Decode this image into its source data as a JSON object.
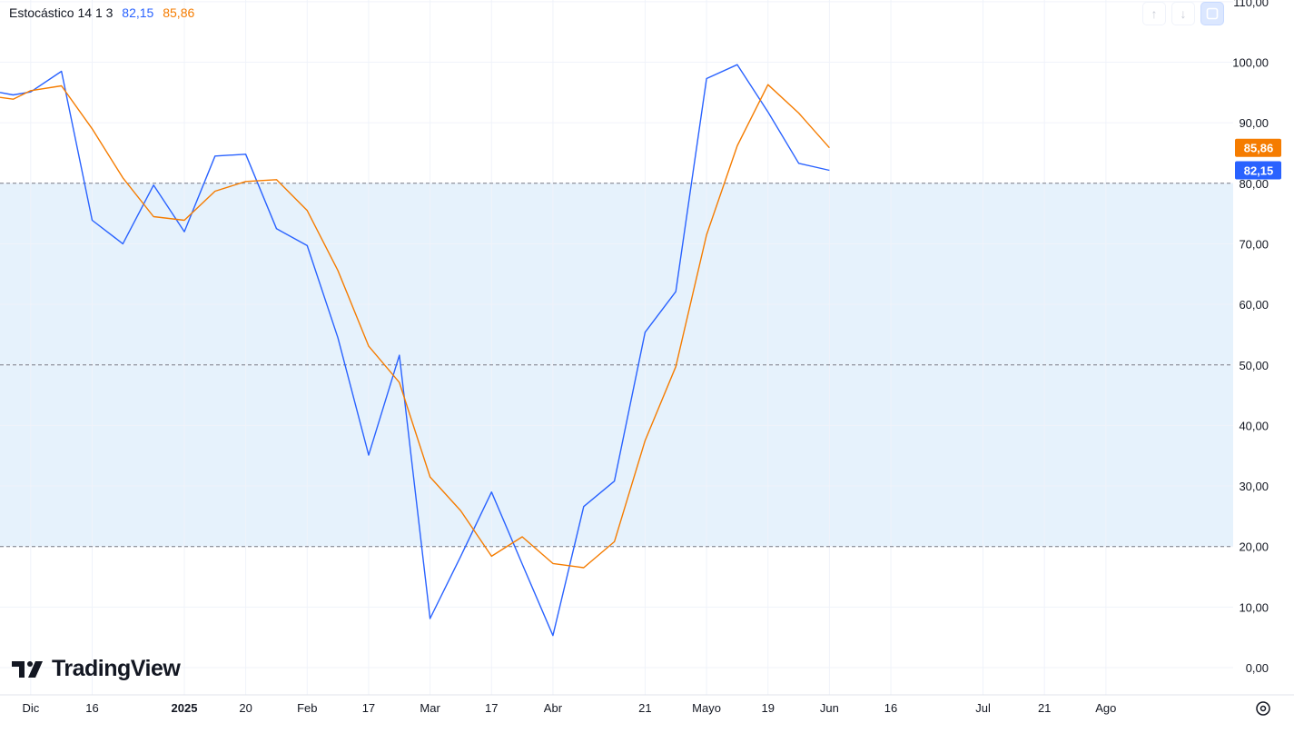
{
  "legend": {
    "name": "Estocástico 14 1 3",
    "k_value": "82,15",
    "d_value": "85,86"
  },
  "toolbar": {
    "up_icon": "arrow-up-icon",
    "down_icon": "arrow-down-icon",
    "reset_icon": "reset-scale-icon"
  },
  "brand": {
    "name": "TradingView",
    "icon": "tradingview-logo-icon"
  },
  "settings_icon": "gear-icon",
  "colors": {
    "k_line": "#2962ff",
    "d_line": "#f57c00",
    "band_fill": "#e6f2fc",
    "grid": "#f0f3fa",
    "axis_text": "#131722"
  },
  "chart_data": {
    "type": "line",
    "title": "Estocástico 14 1 3",
    "xlabel": "",
    "ylabel": "",
    "ylim": [
      -2,
      110
    ],
    "xlim": [
      "2024-11-25",
      "2025-09-02"
    ],
    "y_ticks": [
      "0,00",
      "10,00",
      "20,00",
      "30,00",
      "40,00",
      "50,00",
      "60,00",
      "70,00",
      "80,00",
      "90,00",
      "100,00",
      "110,00"
    ],
    "x_tick_labels": [
      {
        "date": "2024-12-02",
        "label": "Dic"
      },
      {
        "date": "2024-12-16",
        "label": "16"
      },
      {
        "date": "2025-01-06",
        "label": "2025"
      },
      {
        "date": "2025-01-20",
        "label": "20"
      },
      {
        "date": "2025-02-03",
        "label": "Feb"
      },
      {
        "date": "2025-02-17",
        "label": "17"
      },
      {
        "date": "2025-03-03",
        "label": "Mar"
      },
      {
        "date": "2025-03-17",
        "label": "17"
      },
      {
        "date": "2025-03-31",
        "label": "Abr"
      },
      {
        "date": "2025-04-21",
        "label": "21"
      },
      {
        "date": "2025-05-05",
        "label": "Mayo"
      },
      {
        "date": "2025-05-19",
        "label": "19"
      },
      {
        "date": "2025-06-02",
        "label": "Jun"
      },
      {
        "date": "2025-06-16",
        "label": "16"
      },
      {
        "date": "2025-07-07",
        "label": "Jul"
      },
      {
        "date": "2025-07-21",
        "label": "21"
      },
      {
        "date": "2025-08-04",
        "label": "Ago"
      }
    ],
    "bands": {
      "upper": 80,
      "middle": 50,
      "lower": 20
    },
    "x": [
      "2024-11-25",
      "2024-11-28",
      "2024-12-02",
      "2024-12-09",
      "2024-12-16",
      "2024-12-23",
      "2024-12-30",
      "2025-01-06",
      "2025-01-13",
      "2025-01-20",
      "2025-01-27",
      "2025-02-03",
      "2025-02-10",
      "2025-02-17",
      "2025-02-24",
      "2025-03-03",
      "2025-03-10",
      "2025-03-17",
      "2025-03-24",
      "2025-03-31",
      "2025-04-07",
      "2025-04-14",
      "2025-04-21",
      "2025-04-28",
      "2025-05-05",
      "2025-05-12",
      "2025-05-19",
      "2025-05-26",
      "2025-06-02"
    ],
    "series": [
      {
        "name": "",
        "label_value": "82,15",
        "values": [
          95.0,
          94.6,
          95.1,
          98.5,
          73.9,
          70.0,
          79.7,
          72.0,
          84.5,
          84.8,
          72.5,
          69.7,
          54.5,
          35.1,
          51.6,
          8.1,
          18.4,
          29.0,
          17.1,
          5.3,
          26.6,
          30.8,
          55.4,
          62.1,
          97.3,
          99.6,
          91.8,
          83.3,
          82.15
        ]
      },
      {
        "name": "",
        "label_value": "85,86",
        "values": [
          94.2,
          93.9,
          95.3,
          96.1,
          89.0,
          80.9,
          74.5,
          73.9,
          78.7,
          80.3,
          80.6,
          75.5,
          65.6,
          53.1,
          47.1,
          31.5,
          25.9,
          18.4,
          21.6,
          17.2,
          16.5,
          20.8,
          37.5,
          49.7,
          71.5,
          86.2,
          96.3,
          91.6,
          85.86
        ]
      }
    ]
  }
}
